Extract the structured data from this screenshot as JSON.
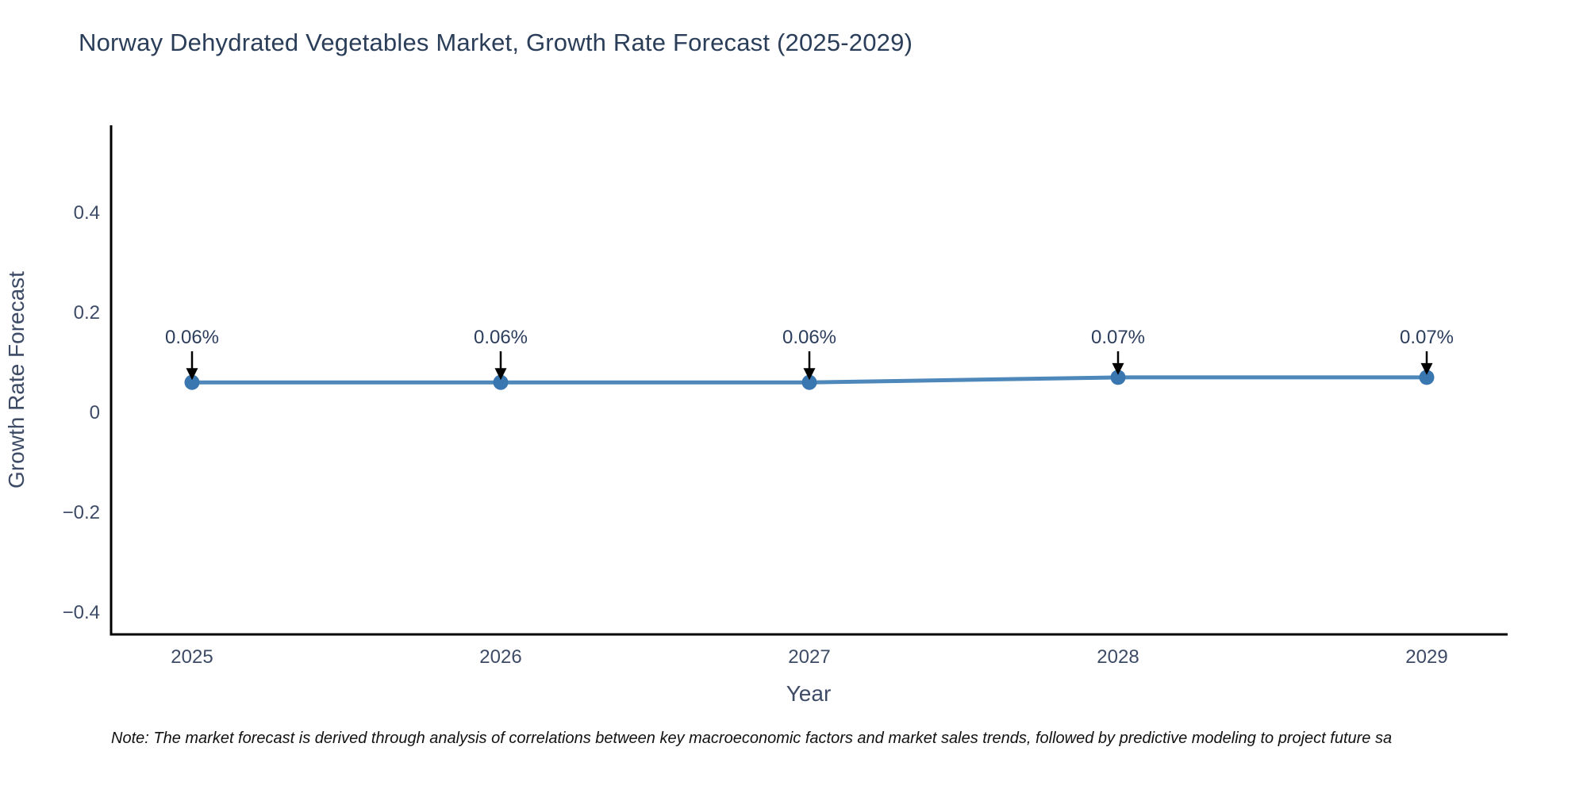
{
  "chart": {
    "note": "Note: The market forecast is derived through analysis of correlations between key macroeconomic factors and market sales trends, followed by predictive modeling to project future sa",
    "colors": {
      "background": "#ffffff",
      "line": "#4e88ba",
      "marker": "#3a76b0",
      "axis_line": "#000000",
      "title_text": "#2b3e59",
      "tick_text": "#3d4b66",
      "annotation_text": "#2c3e5d",
      "arrow": "#000000",
      "note_text": "#111111"
    }
  },
  "chart_data": {
    "type": "line",
    "title": "Norway Dehydrated Vegetables Market, Growth Rate Forecast (2025-2029)",
    "xlabel": "Year",
    "ylabel": "Growth Rate Forecast",
    "categories": [
      "2025",
      "2026",
      "2027",
      "2028",
      "2029"
    ],
    "x": [
      2025,
      2026,
      2027,
      2028,
      2029
    ],
    "series": [
      {
        "name": "Growth Rate Forecast",
        "values": [
          0.06,
          0.06,
          0.06,
          0.07,
          0.07
        ]
      }
    ],
    "point_labels": [
      "0.06%",
      "0.06%",
      "0.06%",
      "0.07%",
      "0.07%"
    ],
    "yticks": [
      0.4,
      0.2,
      0,
      -0.2,
      -0.4
    ],
    "ytick_labels": [
      "0.4",
      "0.2",
      "0",
      "−0.2",
      "−0.4"
    ],
    "ylim": [
      -0.45,
      0.57
    ],
    "grid": false,
    "legend_position": "none",
    "annotation_style": "black-arrow-down-to-point"
  }
}
